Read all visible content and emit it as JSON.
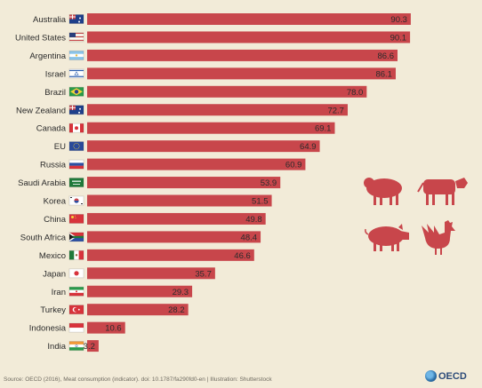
{
  "chart_data": {
    "type": "bar",
    "orientation": "horizontal",
    "categories": [
      "Australia",
      "United States",
      "Argentina",
      "Israel",
      "Brazil",
      "New Zealand",
      "Canada",
      "EU",
      "Russia",
      "Saudi Arabia",
      "Korea",
      "China",
      "South Africa",
      "Mexico",
      "Japan",
      "Iran",
      "Turkey",
      "Indonesia",
      "India"
    ],
    "values": [
      90.3,
      90.1,
      86.6,
      86.1,
      78.0,
      72.7,
      69.1,
      64.9,
      60.9,
      53.9,
      51.5,
      49.8,
      48.4,
      46.6,
      35.7,
      29.3,
      28.2,
      10.6,
      3.2
    ],
    "value_labels": [
      "90.3",
      "90.1",
      "86.6",
      "86.1",
      "78.0",
      "72.7",
      "69.1",
      "64.9",
      "60.9",
      "53.9",
      "51.5",
      "49.8",
      "48.4",
      "46.6",
      "35.7",
      "29.3",
      "28.2",
      "10.6",
      "3.2"
    ],
    "flags": [
      "australia",
      "united-states",
      "argentina",
      "israel",
      "brazil",
      "new-zealand",
      "canada",
      "eu",
      "russia",
      "saudi-arabia",
      "korea",
      "china",
      "south-africa",
      "mexico",
      "japan",
      "iran",
      "turkey",
      "indonesia",
      "india"
    ],
    "title": "",
    "xlabel": "",
    "ylabel": "",
    "xlim": [
      0,
      100
    ],
    "grid": false,
    "legend": "none",
    "bar_color": "#c8464b",
    "background": "#f2ebd8",
    "illustration_color": "#c8464b",
    "illustrations": [
      "sheep-icon",
      "cow-icon",
      "pig-icon",
      "rooster-icon"
    ]
  },
  "footer": {
    "source": "Source: OECD (2016), Meat consumption (indicator). doi: 10.1787/fa290fd0-en | Illustration: Shutterstock",
    "logo": "OECD"
  }
}
